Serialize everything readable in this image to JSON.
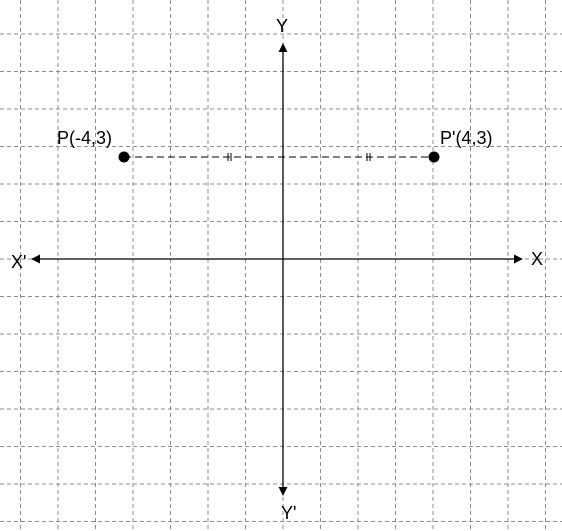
{
  "diagram": {
    "axis_labels": {
      "x_positive": "X",
      "x_negative": "X'",
      "y_positive": "Y",
      "y_negative": "Y'"
    },
    "points": [
      {
        "id": "P",
        "label": "P(-4,3)",
        "x": -4,
        "y": 3
      },
      {
        "id": "P_prime",
        "label": "P'(4,3)",
        "x": 4,
        "y": 3
      }
    ],
    "colors": {
      "grid": "#8c8c8c",
      "axis": "#000000",
      "point": "#000000",
      "connector": "#000000"
    }
  }
}
